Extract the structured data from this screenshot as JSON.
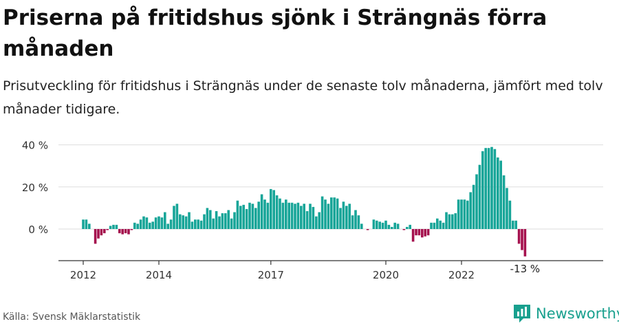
{
  "title": "Priserna på fritidshus sjönk i Strängnäs förra månaden",
  "subtitle": "Prisutveckling för fritidshus i Strängnäs under de senaste tolv månaderna, jämfört med tolv månader tidigare.",
  "source": "Källa: Svensk Mäklarstatistik",
  "brand": "Newsworthy",
  "colors": {
    "positive": "#17a598",
    "negative": "#a5114e",
    "brand": "#18a08e",
    "grid": "#dddddd",
    "axis": "#333333"
  },
  "chart_data": {
    "type": "bar",
    "ylim": [
      -14,
      42
    ],
    "yticks": [
      {
        "value": 40,
        "label": "40 %"
      },
      {
        "value": 20,
        "label": "20 %"
      },
      {
        "value": 0,
        "label": "0 %"
      }
    ],
    "xticks": [
      {
        "index": 0,
        "label": "2012"
      },
      {
        "index": 25,
        "label": "2014"
      },
      {
        "index": 62,
        "label": "2017"
      },
      {
        "index": 100,
        "label": "2020"
      },
      {
        "index": 125,
        "label": "2022"
      }
    ],
    "end_label": "-13 %",
    "grid": true,
    "values": [
      4.5,
      4.5,
      2.5,
      0,
      -7,
      -4.5,
      -3,
      -2,
      -0.5,
      1.5,
      2,
      2,
      -2,
      -2.5,
      -2,
      -2.5,
      -0.5,
      3,
      2.5,
      4.5,
      6,
      5.5,
      3,
      3.5,
      5.5,
      6,
      5.5,
      8,
      2.5,
      4.5,
      11,
      12,
      7,
      6.5,
      6,
      8,
      3.5,
      4.5,
      4.5,
      4,
      7,
      10,
      9,
      5,
      8.5,
      6,
      7.5,
      7.5,
      9,
      5,
      8,
      13.5,
      11,
      11.5,
      9.5,
      12.5,
      12,
      10,
      13,
      16.5,
      14,
      12.5,
      19,
      18.5,
      16,
      14.5,
      12.5,
      14,
      12.5,
      12.5,
      12,
      12.5,
      11,
      12,
      8.5,
      12,
      10.5,
      6,
      8,
      15.5,
      14,
      12,
      15,
      15,
      14.5,
      10,
      13,
      11,
      12,
      6.5,
      9,
      6.5,
      2.5,
      0,
      -0.5,
      0,
      4.5,
      4,
      3.5,
      3,
      4,
      2,
      1,
      3,
      2.5,
      0,
      -0.5,
      1,
      2,
      -6,
      -3,
      -3,
      -4,
      -3.5,
      -3,
      3,
      3,
      5,
      4,
      3,
      8,
      7,
      7,
      7.5,
      14,
      14,
      14,
      13.5,
      17.5,
      21,
      26,
      30.5,
      37,
      38.5,
      38.5,
      39,
      38,
      34,
      32.5,
      25.5,
      19.5,
      13.5,
      4,
      4,
      -7,
      -10,
      -13
    ]
  }
}
